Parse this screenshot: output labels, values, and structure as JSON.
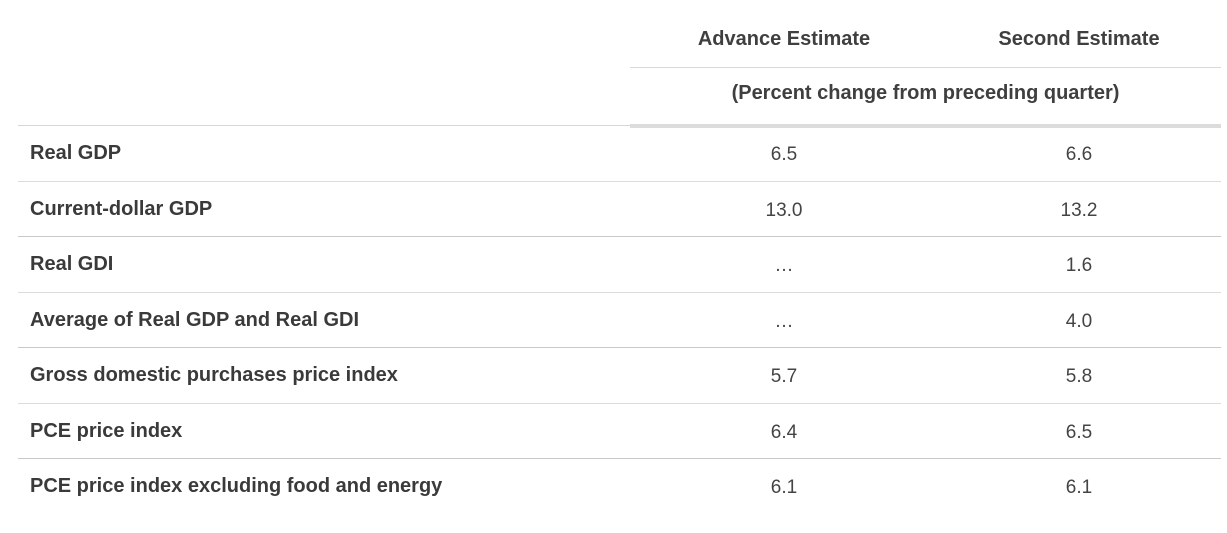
{
  "header": {
    "advance_estimate": "Advance Estimate",
    "second_estimate": "Second Estimate",
    "subheader": "(Percent change from preceding quarter)"
  },
  "rows": [
    {
      "label": "Real GDP",
      "advance": "6.5",
      "second": "6.6"
    },
    {
      "label": "Current-dollar GDP",
      "advance": "13.0",
      "second": "13.2"
    },
    {
      "label": "Real GDI",
      "advance": "…",
      "second": "1.6"
    },
    {
      "label": "Average of Real GDP and Real GDI",
      "advance": "…",
      "second": "4.0"
    },
    {
      "label": "Gross domestic purchases price index",
      "advance": "5.7",
      "second": "5.8"
    },
    {
      "label": "PCE price index",
      "advance": "6.4",
      "second": "6.5"
    },
    {
      "label": "PCE price index excluding food and energy",
      "advance": "6.1",
      "second": "6.1"
    }
  ]
}
